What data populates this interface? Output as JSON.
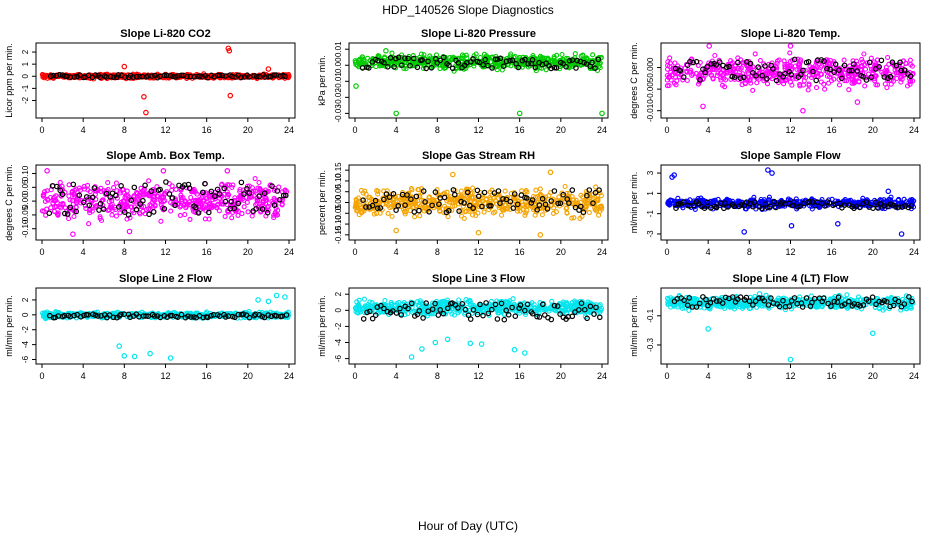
{
  "figure": {
    "title": "HDP_140526  Slope Diagnostics",
    "xlabel": "Hour of Day (UTC)"
  },
  "chart_data": [
    {
      "type": "scatter",
      "title": "Slope Li-820 CO2",
      "ylabel": "Licor ppm per min.",
      "xlim": [
        0,
        24
      ],
      "ylim": [
        -3.2,
        2.5
      ],
      "xticks": [
        0,
        4,
        8,
        12,
        16,
        20,
        24
      ],
      "yticks": [
        -2,
        -1,
        0,
        1,
        2
      ],
      "yticklabels": [
        "-2",
        "-1",
        "0",
        "1",
        "2"
      ],
      "grid": false,
      "colors": {
        "fill": "#ff0000",
        "overlay": "#000000"
      },
      "fill_band": [
        -0.25,
        0.25
      ],
      "overlay_band": [
        -0.12,
        0.12
      ],
      "outliers": [
        [
          18.1,
          2.3
        ],
        [
          18.2,
          2.1
        ],
        [
          8.0,
          0.8
        ],
        [
          9.9,
          -1.7
        ],
        [
          10.1,
          -3.0
        ],
        [
          18.3,
          -1.6
        ],
        [
          22.0,
          0.6
        ]
      ]
    },
    {
      "type": "scatter",
      "title": "Slope Li-820 Pressure",
      "ylabel": "kPa per min.",
      "xlim": [
        0,
        24
      ],
      "ylim": [
        -0.031,
        0.012
      ],
      "xticks": [
        0,
        4,
        8,
        12,
        16,
        20,
        24
      ],
      "yticks": [
        -0.03,
        -0.02,
        -0.01,
        0.0,
        0.01
      ],
      "yticklabels": [
        "-0.03",
        "-0.02",
        "-0.01",
        "0.00",
        "0.01"
      ],
      "grid": false,
      "colors": {
        "fill": "#00cc00",
        "overlay": "#000000"
      },
      "fill_band": [
        -0.004,
        0.008
      ],
      "overlay_band": [
        -0.002,
        0.005
      ],
      "outliers": [
        [
          4.0,
          -0.03
        ],
        [
          16.0,
          -0.03
        ],
        [
          24.0,
          -0.03
        ],
        [
          0.1,
          -0.013
        ],
        [
          3.0,
          0.009
        ]
      ]
    },
    {
      "type": "scatter",
      "title": "Slope Li-820 Temp.",
      "ylabel": "degrees C per min.",
      "xlim": [
        0,
        24
      ],
      "ylim": [
        -0.011,
        0.005
      ],
      "xticks": [
        0,
        4,
        8,
        12,
        16,
        20,
        24
      ],
      "yticks": [
        -0.01,
        -0.005,
        0.0
      ],
      "yticklabels": [
        "-0.010",
        "-0.005",
        "0.000"
      ],
      "grid": false,
      "colors": {
        "fill": "#ff00ff",
        "overlay": "#000000"
      },
      "fill_band": [
        -0.006,
        0.004
      ],
      "overlay_band": [
        -0.003,
        0.002
      ],
      "outliers": [
        [
          3.5,
          -0.009
        ],
        [
          13.2,
          -0.01
        ],
        [
          4.1,
          0.005
        ],
        [
          12.0,
          0.005
        ],
        [
          18.5,
          -0.008
        ]
      ]
    },
    {
      "type": "scatter",
      "title": "Slope Amb. Box Temp.",
      "ylabel": "degrees C per min.",
      "xlim": [
        0,
        24
      ],
      "ylim": [
        -0.13,
        0.12
      ],
      "xticks": [
        0,
        4,
        8,
        12,
        16,
        20,
        24
      ],
      "yticks": [
        -0.1,
        -0.05,
        0.0,
        0.05,
        0.1
      ],
      "yticklabels": [
        "-0.10",
        "-0.05",
        "0.00",
        "0.05",
        "0.10"
      ],
      "grid": false,
      "colors": {
        "fill": "#ff00ff",
        "overlay": "#000000"
      },
      "fill_band": [
        -0.09,
        0.09
      ],
      "overlay_band": [
        -0.05,
        0.07
      ],
      "outliers": [
        [
          0.5,
          0.11
        ],
        [
          3.0,
          -0.12
        ],
        [
          8.5,
          -0.11
        ],
        [
          11.8,
          0.11
        ],
        [
          18.0,
          0.11
        ]
      ]
    },
    {
      "type": "scatter",
      "title": "Slope Gas Stream RH",
      "ylabel": "percent per min.",
      "xlim": [
        0,
        24
      ],
      "ylim": [
        -0.16,
        0.16
      ],
      "xticks": [
        0,
        4,
        8,
        12,
        16,
        20,
        24
      ],
      "yticks": [
        -0.15,
        -0.1,
        -0.05,
        0.0,
        0.05,
        0.1,
        0.15
      ],
      "yticklabels": [
        "-0.15",
        "-0.10",
        "-0.05",
        "0.00",
        "0.05",
        "0.10",
        "0.15"
      ],
      "grid": false,
      "colors": {
        "fill": "#f4a300",
        "overlay": "#000000"
      },
      "fill_band": [
        -0.09,
        0.09
      ],
      "overlay_band": [
        -0.05,
        0.06
      ],
      "outliers": [
        [
          9.5,
          0.13
        ],
        [
          12.0,
          -0.14
        ],
        [
          19.0,
          0.14
        ],
        [
          4.0,
          -0.13
        ],
        [
          18.0,
          -0.15
        ]
      ]
    },
    {
      "type": "scatter",
      "title": "Slope Sample Flow",
      "ylabel": "ml/min per min.",
      "xlim": [
        0,
        24
      ],
      "ylim": [
        -3.3,
        3.5
      ],
      "xticks": [
        0,
        4,
        8,
        12,
        16,
        20,
        24
      ],
      "yticks": [
        -3,
        -1,
        1,
        3
      ],
      "yticklabels": [
        "-3",
        "-1",
        "1",
        "3"
      ],
      "grid": false,
      "colors": {
        "fill": "#0000ff",
        "overlay": "#000000"
      },
      "fill_band": [
        -0.7,
        0.7
      ],
      "overlay_band": [
        -0.5,
        0.2
      ],
      "outliers": [
        [
          0.5,
          2.6
        ],
        [
          0.7,
          2.8
        ],
        [
          9.8,
          3.3
        ],
        [
          10.2,
          3.0
        ],
        [
          7.5,
          -2.8
        ],
        [
          12.1,
          -2.2
        ],
        [
          22.8,
          -3.0
        ],
        [
          21.5,
          1.2
        ],
        [
          16.6,
          -2.0
        ]
      ]
    },
    {
      "type": "scatter",
      "title": "Slope Line 2 Flow",
      "ylabel": "ml/min per min.",
      "xlim": [
        0,
        24
      ],
      "ylim": [
        -6.2,
        3.2
      ],
      "xticks": [
        0,
        4,
        8,
        12,
        16,
        20,
        24
      ],
      "yticks": [
        -6,
        -4,
        -2,
        0,
        2
      ],
      "yticklabels": [
        "-6",
        "-4",
        "-2",
        "0",
        "2"
      ],
      "grid": false,
      "colors": {
        "fill": "#00e5ee",
        "overlay": "#000000"
      },
      "fill_band": [
        -0.6,
        0.5
      ],
      "overlay_band": [
        -0.4,
        0.1
      ],
      "outliers": [
        [
          7.5,
          -4.2
        ],
        [
          8.0,
          -5.5
        ],
        [
          9.0,
          -5.6
        ],
        [
          10.5,
          -5.2
        ],
        [
          12.5,
          -5.8
        ],
        [
          21.0,
          2.0
        ],
        [
          22.0,
          1.8
        ],
        [
          22.8,
          2.6
        ],
        [
          23.6,
          2.4
        ]
      ]
    },
    {
      "type": "scatter",
      "title": "Slope Line 3 Flow",
      "ylabel": "ml/min per min.",
      "xlim": [
        0,
        24
      ],
      "ylim": [
        -6.3,
        2.4
      ],
      "xticks": [
        0,
        4,
        8,
        12,
        16,
        20,
        24
      ],
      "yticks": [
        -6,
        -4,
        -2,
        0,
        2
      ],
      "yticklabels": [
        "-6",
        "-4",
        "-2",
        "0",
        "2"
      ],
      "grid": false,
      "colors": {
        "fill": "#00e5ee",
        "overlay": "#000000"
      },
      "fill_band": [
        -1.0,
        1.6
      ],
      "overlay_band": [
        -1.2,
        1.0
      ],
      "outliers": [
        [
          5.5,
          -5.8
        ],
        [
          6.5,
          -4.8
        ],
        [
          7.8,
          -4.0
        ],
        [
          12.3,
          -4.2
        ],
        [
          15.5,
          -4.9
        ],
        [
          16.5,
          -5.3
        ],
        [
          9.0,
          -3.6
        ],
        [
          11.2,
          -4.1
        ]
      ]
    },
    {
      "type": "scatter",
      "title": "Slope Line 4 (LT) Flow",
      "ylabel": "ml/min per min.",
      "xlim": [
        0,
        24
      ],
      "ylim": [
        -0.41,
        0.07
      ],
      "xticks": [
        0,
        4,
        8,
        12,
        16,
        20,
        24
      ],
      "yticks": [
        -0.3,
        -0.1
      ],
      "yticklabels": [
        "-0.3",
        "-0.1"
      ],
      "grid": false,
      "colors": {
        "fill": "#00e5ee",
        "overlay": "#000000"
      },
      "fill_band": [
        -0.07,
        0.05
      ],
      "overlay_band": [
        -0.04,
        0.03
      ],
      "outliers": [
        [
          4.0,
          -0.19
        ],
        [
          12.0,
          -0.4
        ],
        [
          20.0,
          -0.22
        ],
        [
          9.0,
          0.05
        ]
      ]
    }
  ]
}
